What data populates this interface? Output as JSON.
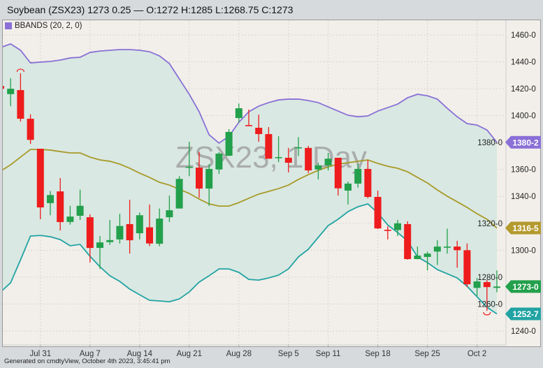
{
  "header": {
    "title": "Soybean (ZSX23) 1273 0.25 — O:1272 H:1285 L:1268.75 C:1273"
  },
  "legend": {
    "label": "BBANDS (20, 2, 0)",
    "color": "#8a70d6"
  },
  "watermark": "ZSX23, 1 Day",
  "footer": "Generated on cmdtyView, October 4th 2023, 3:45:41 pm",
  "colors": {
    "up": "#22a04b",
    "down": "#ee1c1c",
    "upper_band": "#8a70d6",
    "middle_band": "#a89a2a",
    "lower_band": "#22a3a3",
    "band_fill": "#d9e8e2",
    "background": "#f2efea"
  },
  "chart_data": {
    "type": "candlestick",
    "title": "Soybean (ZSX23)",
    "ylim": [
      1232,
      1472
    ],
    "grid": true,
    "y_ticks": [
      "1460-0",
      "1440-0",
      "1420-0",
      "1400-0",
      "1380-0",
      "1360-0",
      "1340-0",
      "1320-0",
      "1300-0",
      "1280-0",
      "1260-0",
      "1240-0"
    ],
    "y_tick_values": [
      1460,
      1440,
      1420,
      1400,
      1380,
      1360,
      1340,
      1320,
      1300,
      1280,
      1260,
      1240
    ],
    "x_ticks": [
      {
        "label": "Jul 31",
        "index": 4
      },
      {
        "label": "Aug 7",
        "index": 9
      },
      {
        "label": "Aug 14",
        "index": 14
      },
      {
        "label": "Aug 21",
        "index": 19
      },
      {
        "label": "Aug 28",
        "index": 24
      },
      {
        "label": "Sep 5",
        "index": 29
      },
      {
        "label": "Sep 11",
        "index": 33
      },
      {
        "label": "Sep 18",
        "index": 38
      },
      {
        "label": "Sep 25",
        "index": 43
      },
      {
        "label": "Oct 2",
        "index": 48
      }
    ],
    "ohlc": [
      [
        1422,
        1423,
        1419,
        1420
      ],
      [
        1416,
        1427.8,
        1407,
        1420
      ],
      [
        1419,
        1431.5,
        1395.6,
        1397.7
      ],
      [
        1397.7,
        1401,
        1379,
        1382
      ],
      [
        1375.4,
        1375.4,
        1323,
        1331.8
      ],
      [
        1335,
        1344,
        1326,
        1341
      ],
      [
        1343.7,
        1353.6,
        1314.7,
        1320.9
      ],
      [
        1321,
        1333,
        1319,
        1325
      ],
      [
        1325.6,
        1345,
        1322.5,
        1333
      ],
      [
        1324.5,
        1326.6,
        1291,
        1301.7
      ],
      [
        1301.7,
        1310.5,
        1286,
        1305.8
      ],
      [
        1306,
        1322.5,
        1304,
        1307.5
      ],
      [
        1308,
        1327,
        1305,
        1318
      ],
      [
        1319.4,
        1337.5,
        1297.5,
        1307.4
      ],
      [
        1312.6,
        1328,
        1308,
        1326
      ],
      [
        1317,
        1334,
        1303,
        1305
      ],
      [
        1304.8,
        1331,
        1303,
        1323.5
      ],
      [
        1324.5,
        1340.6,
        1321,
        1329.7
      ],
      [
        1331,
        1355,
        1331,
        1353
      ],
      [
        1361.5,
        1380.6,
        1355,
        1362
      ],
      [
        1361.4,
        1373,
        1339,
        1345.8
      ],
      [
        1345.8,
        1364,
        1333,
        1360.4
      ],
      [
        1360,
        1372.8,
        1356.7,
        1371.8
      ],
      [
        1370.2,
        1390,
        1370,
        1387.9
      ],
      [
        1398.2,
        1409,
        1395,
        1405.5
      ],
      [
        1393,
        1404.5,
        1392.5,
        1392.5
      ],
      [
        1391,
        1400.8,
        1380.6,
        1386.3
      ],
      [
        1386.3,
        1391.5,
        1368,
        1368
      ],
      [
        1369,
        1384.7,
        1365.5,
        1369.2
      ],
      [
        1368.7,
        1376,
        1357.8,
        1365
      ],
      [
        1376.3,
        1384,
        1370,
        1376.5
      ],
      [
        1376,
        1377.5,
        1357.3,
        1359.3
      ],
      [
        1360,
        1365,
        1352.6,
        1363
      ],
      [
        1363,
        1372.3,
        1359.3,
        1368
      ],
      [
        1368.7,
        1368.7,
        1340.6,
        1346
      ],
      [
        1344.3,
        1351,
        1334,
        1349.5
      ],
      [
        1349.5,
        1364,
        1346.5,
        1360.4
      ],
      [
        1360.4,
        1367,
        1338.6,
        1339.6
      ],
      [
        1339.6,
        1344.3,
        1315.7,
        1316.2
      ],
      [
        1315.2,
        1317.8,
        1308,
        1315
      ],
      [
        1315,
        1322.5,
        1310.5,
        1320
      ],
      [
        1319.4,
        1321.5,
        1293,
        1293.4
      ],
      [
        1293.4,
        1302.7,
        1293.4,
        1296
      ],
      [
        1295,
        1299,
        1285,
        1297.5
      ],
      [
        1299,
        1307.4,
        1289,
        1302.7
      ],
      [
        1302.5,
        1316,
        1297.5,
        1302.7
      ],
      [
        1302.7,
        1307,
        1287,
        1300
      ],
      [
        1300,
        1305,
        1272.6,
        1274.7
      ],
      [
        1272,
        1279.4,
        1266,
        1276.8
      ],
      [
        1276.3,
        1277.8,
        1255,
        1272.6
      ],
      [
        1272,
        1285,
        1268.75,
        1273
      ]
    ],
    "bbands": {
      "upper": [
        1450.7,
        1453.3,
        1448.6,
        1439.2,
        1439.8,
        1440.3,
        1441.3,
        1442.9,
        1443.4,
        1447,
        1448,
        1448.6,
        1449.1,
        1449.1,
        1448.6,
        1447.5,
        1444.4,
        1438.7,
        1427.3,
        1415.9,
        1402.9,
        1385.8,
        1379.6,
        1384.7,
        1395.1,
        1402.9,
        1407.1,
        1409.7,
        1411.7,
        1412.3,
        1412.3,
        1411.2,
        1409.7,
        1406.5,
        1403.4,
        1400.3,
        1399.2,
        1399.8,
        1403.4,
        1406,
        1408.6,
        1413.3,
        1415.9,
        1414.8,
        1412.3,
        1405.5,
        1399.2,
        1394.1,
        1393,
        1389.4,
        1380.2
      ],
      "middle": [
        1358.8,
        1363.5,
        1369.2,
        1374.9,
        1374.9,
        1374.4,
        1373.3,
        1372.3,
        1372.3,
        1369.2,
        1367.1,
        1366.1,
        1364,
        1360.9,
        1357.3,
        1354.1,
        1350.5,
        1348.4,
        1345.3,
        1342.2,
        1338,
        1334.4,
        1332.8,
        1332.8,
        1335.4,
        1338.6,
        1341.7,
        1343.7,
        1345.8,
        1348.4,
        1352.6,
        1356.2,
        1359.3,
        1361.9,
        1364,
        1365,
        1366.1,
        1367.1,
        1364.5,
        1362.4,
        1360.9,
        1358.3,
        1354.1,
        1350,
        1344.8,
        1340.1,
        1336,
        1331.8,
        1327.1,
        1323,
        1316.5
      ],
      "lower": [
        1269,
        1275.8,
        1292.9,
        1310.5,
        1311,
        1310,
        1307.9,
        1303.3,
        1304.3,
        1295.5,
        1287.7,
        1281,
        1276.8,
        1271.1,
        1266.9,
        1262.8,
        1262.3,
        1261.7,
        1263.8,
        1269,
        1276.3,
        1281,
        1286.1,
        1286.1,
        1283.5,
        1278.3,
        1277.8,
        1279.4,
        1281.5,
        1286.1,
        1295,
        1300.7,
        1309.5,
        1318.3,
        1323,
        1328.7,
        1332.3,
        1334.4,
        1327.7,
        1318.8,
        1313.1,
        1306.9,
        1295,
        1290.8,
        1285.6,
        1282.5,
        1279.4,
        1273.2,
        1265.4,
        1257.6,
        1252.7
      ]
    },
    "price_badges": [
      {
        "label": "1380-2",
        "value": 1380.2,
        "color": "#8a70d6"
      },
      {
        "label": "1316-5",
        "value": 1316.5,
        "color": "#b59a2e"
      },
      {
        "label": "1273-0",
        "value": 1273,
        "color": "#22a04b"
      },
      {
        "label": "1252-7",
        "value": 1252.7,
        "color": "#22a3a3"
      }
    ],
    "extreme_markers": [
      {
        "index": 2,
        "type": "high"
      },
      {
        "index": 49,
        "type": "low"
      }
    ]
  }
}
